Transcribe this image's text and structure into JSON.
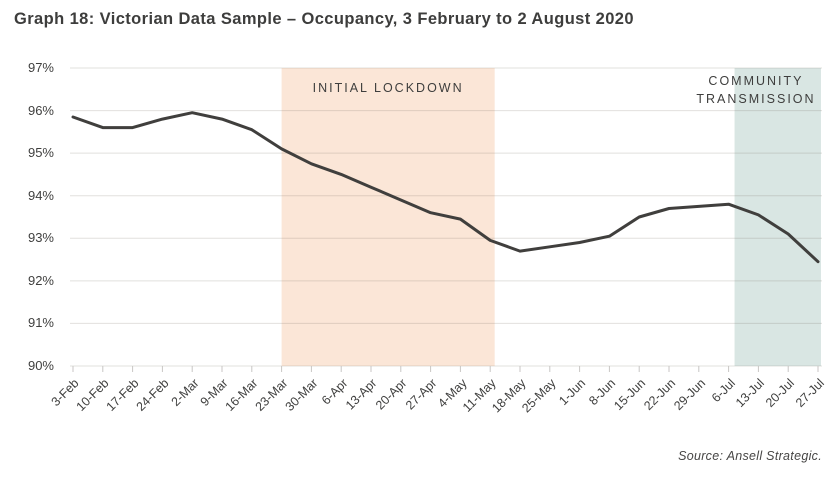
{
  "title": "Graph 18: Victorian Data Sample – Occupancy, 3 February to 2 August 2020",
  "source": "Source: Ansell Strategic.",
  "chart_data": {
    "type": "line",
    "title": "Graph 18: Victorian Data Sample – Occupancy, 3 February to 2 August 2020",
    "xlabel": "",
    "ylabel": "",
    "ylim": [
      90,
      97
    ],
    "y_tick_labels": [
      "97%",
      "96%",
      "95%",
      "94%",
      "93%",
      "92%",
      "91%",
      "90%"
    ],
    "y_tick_values": [
      97,
      96,
      95,
      94,
      93,
      92,
      91,
      90
    ],
    "grid": "horizontal",
    "legend": "none",
    "line_color": "#403f3d",
    "categories": [
      "3-Feb",
      "10-Feb",
      "17-Feb",
      "24-Feb",
      "2-Mar",
      "9-Mar",
      "16-Mar",
      "23-Mar",
      "30-Mar",
      "6-Apr",
      "13-Apr",
      "20-Apr",
      "27-Apr",
      "4-May",
      "11-May",
      "18-May",
      "25-May",
      "1-Jun",
      "8-Jun",
      "15-Jun",
      "22-Jun",
      "29-Jun",
      "6-Jul",
      "13-Jul",
      "20-Jul",
      "27-Jul"
    ],
    "series": [
      {
        "name": "Occupancy",
        "values": [
          95.85,
          95.6,
          95.6,
          95.8,
          95.95,
          95.8,
          95.55,
          95.1,
          94.75,
          94.5,
          94.2,
          93.9,
          93.6,
          93.45,
          92.95,
          92.7,
          92.8,
          92.9,
          93.05,
          93.5,
          93.7,
          93.75,
          93.8,
          93.55,
          93.1,
          92.45
        ]
      }
    ],
    "annotations": [
      {
        "label": "INITIAL LOCKDOWN",
        "start_category": "23-Mar",
        "end_category": "11-May",
        "start_index": 7,
        "end_index": 14.15,
        "color": "#fbe6d7"
      },
      {
        "label": "COMMUNITY TRANSMISSION",
        "label_lines": [
          "COMMUNITY",
          "TRANSMISSION"
        ],
        "start_category": "6-Jul",
        "end_category": "27-Jul",
        "start_index": 22.2,
        "end_index": 25.1,
        "color": "#d9e6e3"
      }
    ]
  }
}
